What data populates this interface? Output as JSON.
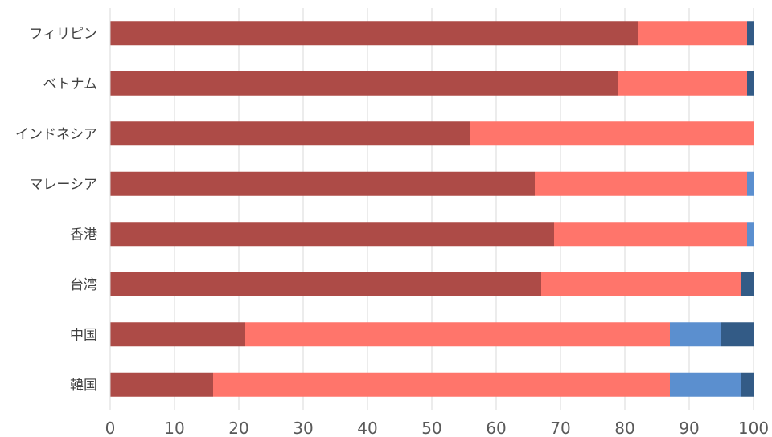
{
  "chart_data": {
    "type": "bar",
    "orientation": "horizontal",
    "stacked": true,
    "categories": [
      "フィリピン",
      "ベトナム",
      "インドネシア",
      "マレーシア",
      "香港",
      "台湾",
      "中国",
      "韓国"
    ],
    "series": [
      {
        "color": "#ad4b47",
        "values": [
          82,
          79,
          56,
          66,
          69,
          67,
          21,
          16
        ]
      },
      {
        "color": "#ff756b",
        "values": [
          17,
          20,
          44,
          33,
          30,
          31,
          66,
          71
        ]
      },
      {
        "color": "#5b8fcf",
        "values": [
          0,
          0,
          0,
          1,
          1,
          0,
          8,
          11
        ]
      },
      {
        "color": "#335b86",
        "values": [
          1,
          1,
          0,
          0,
          0,
          2,
          5,
          2
        ]
      }
    ],
    "xlim": [
      0,
      100
    ],
    "xticks": [
      "0",
      "10",
      "20",
      "30",
      "40",
      "50",
      "60",
      "70",
      "80",
      "90",
      "100"
    ],
    "grid": true,
    "legend": "none"
  }
}
